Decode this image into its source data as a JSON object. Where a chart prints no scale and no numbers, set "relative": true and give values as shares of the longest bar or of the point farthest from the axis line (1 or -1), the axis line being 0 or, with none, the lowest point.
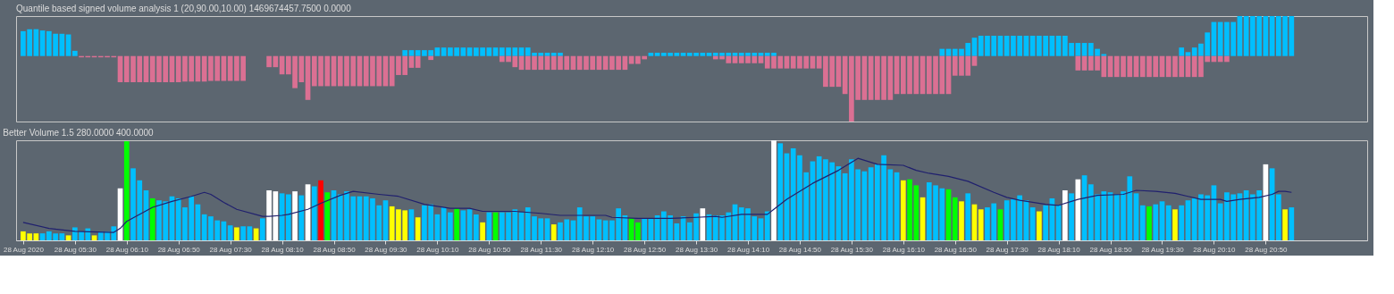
{
  "chart_data": [
    {
      "type": "bar",
      "title": "Quantile based signed volume analysis 1 (20,90.00,10.00) 1469674457.7500 0.0000",
      "relative": true,
      "tick_labels": false,
      "xlim": [
        "2020-08-28T04:48",
        "2020-08-28T22:05"
      ],
      "x": [
        "2020-08-28T04:50",
        "2020-08-28T04:55",
        "2020-08-28T05:00",
        "2020-08-28T05:05",
        "2020-08-28T05:10",
        "2020-08-28T05:15",
        "2020-08-28T05:20",
        "2020-08-28T05:25",
        "2020-08-28T05:30",
        "2020-08-28T05:35",
        "2020-08-28T05:40",
        "2020-08-28T05:45",
        "2020-08-28T05:50",
        "2020-08-28T05:55",
        "2020-08-28T06:00",
        "2020-08-28T06:05",
        "2020-08-28T06:10",
        "2020-08-28T06:15",
        "2020-08-28T06:20",
        "2020-08-28T06:25",
        "2020-08-28T06:30",
        "2020-08-28T06:35",
        "2020-08-28T06:40",
        "2020-08-28T06:45",
        "2020-08-28T06:50",
        "2020-08-28T06:55",
        "2020-08-28T07:00",
        "2020-08-28T07:05",
        "2020-08-28T07:10",
        "2020-08-28T07:15",
        "2020-08-28T07:20",
        "2020-08-28T07:25",
        "2020-08-28T07:30",
        "2020-08-28T07:35",
        "2020-08-28T07:40",
        "2020-08-28T07:45",
        "2020-08-28T07:50",
        "2020-08-28T07:55",
        "2020-08-28T08:00",
        "2020-08-28T08:05",
        "2020-08-28T08:10",
        "2020-08-28T08:15",
        "2020-08-28T08:20",
        "2020-08-28T08:25",
        "2020-08-28T08:30",
        "2020-08-28T08:35",
        "2020-08-28T08:40",
        "2020-08-28T08:45",
        "2020-08-28T08:50",
        "2020-08-28T08:55",
        "2020-08-28T09:00",
        "2020-08-28T09:05",
        "2020-08-28T09:10",
        "2020-08-28T09:15",
        "2020-08-28T09:20",
        "2020-08-28T09:25",
        "2020-08-28T09:30",
        "2020-08-28T09:35",
        "2020-08-28T09:40",
        "2020-08-28T09:45",
        "2020-08-28T09:50",
        "2020-08-28T09:55",
        "2020-08-28T10:00",
        "2020-08-28T10:05",
        "2020-08-28T10:10",
        "2020-08-28T10:15",
        "2020-08-28T10:20",
        "2020-08-28T10:25",
        "2020-08-28T10:30",
        "2020-08-28T10:35",
        "2020-08-28T10:40",
        "2020-08-28T10:45",
        "2020-08-28T10:50",
        "2020-08-28T10:55",
        "2020-08-28T11:00",
        "2020-08-28T11:05",
        "2020-08-28T11:10",
        "2020-08-28T11:15",
        "2020-08-28T11:20",
        "2020-08-28T11:25",
        "2020-08-28T11:30",
        "2020-08-28T11:35",
        "2020-08-28T11:40",
        "2020-08-28T11:45",
        "2020-08-28T11:50",
        "2020-08-28T11:55",
        "2020-08-28T12:00",
        "2020-08-28T12:05",
        "2020-08-28T12:10",
        "2020-08-28T12:15",
        "2020-08-28T12:20",
        "2020-08-28T12:25",
        "2020-08-28T12:30",
        "2020-08-28T12:35",
        "2020-08-28T12:40",
        "2020-08-28T12:45",
        "2020-08-28T12:50",
        "2020-08-28T12:55",
        "2020-08-28T13:00",
        "2020-08-28T13:05",
        "2020-08-28T13:10",
        "2020-08-28T13:15",
        "2020-08-28T13:20",
        "2020-08-28T13:25",
        "2020-08-28T13:30",
        "2020-08-28T13:35",
        "2020-08-28T13:40",
        "2020-08-28T13:45",
        "2020-08-28T13:50",
        "2020-08-28T13:55",
        "2020-08-28T14:00",
        "2020-08-28T14:05",
        "2020-08-28T14:10",
        "2020-08-28T14:15",
        "2020-08-28T14:20",
        "2020-08-28T14:25",
        "2020-08-28T14:30",
        "2020-08-28T14:35",
        "2020-08-28T14:40",
        "2020-08-28T14:45",
        "2020-08-28T14:50",
        "2020-08-28T14:55",
        "2020-08-28T15:00",
        "2020-08-28T15:05",
        "2020-08-28T15:10",
        "2020-08-28T15:15",
        "2020-08-28T15:20",
        "2020-08-28T15:25",
        "2020-08-28T15:30",
        "2020-08-28T15:35",
        "2020-08-28T15:40",
        "2020-08-28T15:45",
        "2020-08-28T15:50",
        "2020-08-28T15:55",
        "2020-08-28T16:00",
        "2020-08-28T16:05",
        "2020-08-28T16:10",
        "2020-08-28T16:15",
        "2020-08-28T16:20",
        "2020-08-28T16:25",
        "2020-08-28T16:30",
        "2020-08-28T16:35",
        "2020-08-28T16:40",
        "2020-08-28T16:45",
        "2020-08-28T16:50",
        "2020-08-28T16:55",
        "2020-08-28T17:00",
        "2020-08-28T17:05",
        "2020-08-28T17:10",
        "2020-08-28T17:15",
        "2020-08-28T17:20",
        "2020-08-28T17:25",
        "2020-08-28T17:30",
        "2020-08-28T17:35",
        "2020-08-28T17:40",
        "2020-08-28T17:45",
        "2020-08-28T17:50",
        "2020-08-28T17:55",
        "2020-08-28T18:00",
        "2020-08-28T18:05",
        "2020-08-28T18:10",
        "2020-08-28T18:15",
        "2020-08-28T18:20",
        "2020-08-28T18:25",
        "2020-08-28T18:30",
        "2020-08-28T18:35",
        "2020-08-28T18:40",
        "2020-08-28T18:45",
        "2020-08-28T18:50",
        "2020-08-28T18:55",
        "2020-08-28T19:00",
        "2020-08-28T19:05",
        "2020-08-28T19:10",
        "2020-08-28T19:15",
        "2020-08-28T19:20",
        "2020-08-28T19:25",
        "2020-08-28T19:30",
        "2020-08-28T19:35",
        "2020-08-28T19:40",
        "2020-08-28T19:45",
        "2020-08-28T19:50",
        "2020-08-28T19:55",
        "2020-08-28T20:00",
        "2020-08-28T20:05",
        "2020-08-28T20:10",
        "2020-08-28T20:15",
        "2020-08-28T20:20",
        "2020-08-28T20:25",
        "2020-08-28T20:30",
        "2020-08-28T20:35",
        "2020-08-28T20:40",
        "2020-08-28T20:45",
        "2020-08-28T20:50",
        "2020-08-28T20:55",
        "2020-08-28T21:00",
        "2020-08-28T21:05",
        "2020-08-28T21:10"
      ],
      "series": [
        {
          "color": "#00bfff",
          "values": [
            0.38,
            0.41,
            0.41,
            0.39,
            0.38,
            0.34,
            0.34,
            0.33,
            0.08,
            null,
            null,
            null,
            null,
            null,
            null,
            null,
            null,
            null,
            null,
            null,
            null,
            null,
            null,
            null,
            null,
            null,
            null,
            null,
            null,
            null,
            null,
            null,
            null,
            null,
            null,
            null,
            null,
            null,
            null,
            null,
            null,
            null,
            null,
            null,
            null,
            null,
            null,
            null,
            null,
            null,
            null,
            null,
            null,
            null,
            null,
            null,
            null,
            null,
            null,
            0.09,
            0.09,
            0.09,
            0.09,
            0.09,
            0.13,
            0.13,
            0.13,
            0.13,
            0.13,
            0.13,
            0.13,
            0.13,
            0.13,
            0.13,
            0.13,
            0.13,
            0.13,
            0.13,
            0.13,
            0.05,
            0.05,
            0.05,
            0.05,
            0.05,
            null,
            null,
            null,
            null,
            null,
            null,
            null,
            null,
            null,
            null,
            null,
            null,
            null,
            0.05,
            0.05,
            0.05,
            0.05,
            0.05,
            0.05,
            0.05,
            0.05,
            0.05,
            0.05,
            0.05,
            0.05,
            0.05,
            0.05,
            0.05,
            0.05,
            0.05,
            0.05,
            0.05,
            0.05,
            null,
            null,
            null,
            null,
            null,
            null,
            null,
            null,
            null,
            null,
            null,
            null,
            null,
            null,
            null,
            null,
            null,
            null,
            null,
            null,
            null,
            null,
            null,
            null,
            null,
            0.11,
            0.11,
            0.11,
            0.11,
            0.2,
            0.28,
            0.31,
            0.31,
            0.31,
            0.31,
            0.31,
            0.31,
            0.31,
            0.31,
            0.31,
            0.31,
            0.31,
            0.31,
            0.31,
            0.31,
            0.2,
            0.2,
            0.2,
            0.2,
            0.11,
            0.03,
            null,
            null,
            null,
            null,
            null,
            null,
            null,
            null,
            null,
            null,
            null,
            0.13,
            0.06,
            0.13,
            0.19,
            0.36,
            0.52,
            0.52,
            0.52,
            0.52,
            0.61,
            0.61,
            0.61,
            0.61,
            0.61,
            0.61,
            0.61,
            0.61,
            0.61
          ]
        },
        {
          "color": "#db7093",
          "values": [
            null,
            null,
            null,
            null,
            null,
            null,
            null,
            null,
            null,
            -0.02,
            -0.02,
            -0.02,
            -0.02,
            -0.02,
            -0.02,
            -0.4,
            -0.4,
            -0.4,
            -0.4,
            -0.4,
            -0.4,
            -0.4,
            -0.4,
            -0.4,
            -0.4,
            -0.39,
            -0.39,
            -0.39,
            -0.39,
            -0.38,
            -0.38,
            -0.38,
            -0.38,
            -0.38,
            -0.38,
            null,
            null,
            null,
            -0.17,
            -0.17,
            -0.28,
            -0.28,
            -0.49,
            -0.4,
            -0.67,
            -0.46,
            -0.46,
            -0.46,
            -0.46,
            -0.46,
            -0.46,
            -0.46,
            -0.46,
            -0.46,
            -0.46,
            -0.46,
            -0.46,
            -0.46,
            -0.29,
            -0.29,
            -0.18,
            -0.18,
            null,
            -0.06,
            null,
            null,
            null,
            null,
            null,
            null,
            null,
            null,
            null,
            null,
            -0.09,
            -0.09,
            -0.17,
            -0.21,
            -0.21,
            -0.21,
            -0.21,
            -0.21,
            -0.21,
            -0.21,
            -0.21,
            -0.21,
            -0.21,
            -0.21,
            -0.21,
            -0.21,
            -0.21,
            -0.21,
            -0.21,
            -0.21,
            -0.12,
            -0.12,
            -0.05,
            null,
            null,
            null,
            null,
            null,
            null,
            null,
            null,
            null,
            null,
            -0.05,
            -0.05,
            -0.11,
            -0.11,
            -0.11,
            -0.11,
            -0.11,
            -0.11,
            -0.19,
            -0.19,
            -0.19,
            -0.19,
            -0.19,
            -0.19,
            -0.19,
            -0.19,
            -0.19,
            -0.47,
            -0.47,
            -0.47,
            -0.58,
            -1,
            -0.67,
            -0.67,
            -0.67,
            -0.67,
            -0.67,
            -0.67,
            -0.58,
            -0.58,
            -0.58,
            -0.58,
            -0.58,
            -0.58,
            -0.58,
            -0.58,
            -0.58,
            -0.3,
            -0.3,
            -0.3,
            -0.15,
            null,
            null,
            null,
            null,
            null,
            null,
            null,
            null,
            null,
            null,
            null,
            null,
            null,
            null,
            null,
            -0.22,
            -0.22,
            -0.22,
            -0.22,
            -0.32,
            -0.32,
            -0.32,
            -0.32,
            -0.32,
            -0.32,
            -0.32,
            -0.32,
            -0.32,
            -0.32,
            -0.32,
            -0.32,
            -0.32,
            -0.32,
            -0.32,
            -0.32,
            -0.09,
            -0.09,
            -0.09,
            -0.09,
            null,
            null,
            null,
            null,
            null,
            null,
            null,
            null,
            null,
            null
          ]
        }
      ]
    },
    {
      "type": "bar",
      "title": "Better Volume 1.5 280.0000 400.0000",
      "relative": true,
      "xlim": [
        "2020-08-28T04:48",
        "2020-08-28T22:05"
      ],
      "xticks": [
        {
          "value": "2020-08-28T04:50",
          "label": "28 Aug 2020"
        },
        {
          "value": "2020-08-28T05:30",
          "label": "28 Aug 05:30"
        },
        {
          "value": "2020-08-28T06:10",
          "label": "28 Aug 06:10"
        },
        {
          "value": "2020-08-28T06:50",
          "label": "28 Aug 06:50"
        },
        {
          "value": "2020-08-28T07:30",
          "label": "28 Aug 07:30"
        },
        {
          "value": "2020-08-28T08:10",
          "label": "28 Aug 08:10"
        },
        {
          "value": "2020-08-28T08:50",
          "label": "28 Aug 08:50"
        },
        {
          "value": "2020-08-28T09:30",
          "label": "28 Aug 09:30"
        },
        {
          "value": "2020-08-28T10:10",
          "label": "28 Aug 10:10"
        },
        {
          "value": "2020-08-28T10:50",
          "label": "28 Aug 10:50"
        },
        {
          "value": "2020-08-28T11:30",
          "label": "28 Aug 11:30"
        },
        {
          "value": "2020-08-28T12:10",
          "label": "28 Aug 12:10"
        },
        {
          "value": "2020-08-28T12:50",
          "label": "28 Aug 12:50"
        },
        {
          "value": "2020-08-28T13:30",
          "label": "28 Aug 13:30"
        },
        {
          "value": "2020-08-28T14:10",
          "label": "28 Aug 14:10"
        },
        {
          "value": "2020-08-28T14:50",
          "label": "28 Aug 14:50"
        },
        {
          "value": "2020-08-28T15:30",
          "label": "28 Aug 15:30"
        },
        {
          "value": "2020-08-28T16:10",
          "label": "28 Aug 16:10"
        },
        {
          "value": "2020-08-28T16:50",
          "label": "28 Aug 16:50"
        },
        {
          "value": "2020-08-28T17:30",
          "label": "28 Aug 17:30"
        },
        {
          "value": "2020-08-28T18:10",
          "label": "28 Aug 18:10"
        },
        {
          "value": "2020-08-28T18:50",
          "label": "28 Aug 18:50"
        },
        {
          "value": "2020-08-28T19:30",
          "label": "28 Aug 19:30"
        },
        {
          "value": "2020-08-28T20:10",
          "label": "28 Aug 20:10"
        },
        {
          "value": "2020-08-28T20:50",
          "label": "28 Aug 20:50"
        }
      ],
      "x": [
        "2020-08-28T04:50",
        "2020-08-28T04:55",
        "2020-08-28T05:00",
        "2020-08-28T05:05",
        "2020-08-28T05:10",
        "2020-08-28T05:15",
        "2020-08-28T05:20",
        "2020-08-28T05:25",
        "2020-08-28T05:30",
        "2020-08-28T05:35",
        "2020-08-28T05:40",
        "2020-08-28T05:45",
        "2020-08-28T05:50",
        "2020-08-28T05:55",
        "2020-08-28T06:00",
        "2020-08-28T06:05",
        "2020-08-28T06:10",
        "2020-08-28T06:15",
        "2020-08-28T06:20",
        "2020-08-28T06:25",
        "2020-08-28T06:30",
        "2020-08-28T06:35",
        "2020-08-28T06:40",
        "2020-08-28T06:45",
        "2020-08-28T06:50",
        "2020-08-28T06:55",
        "2020-08-28T07:00",
        "2020-08-28T07:05",
        "2020-08-28T07:10",
        "2020-08-28T07:15",
        "2020-08-28T07:20",
        "2020-08-28T07:25",
        "2020-08-28T07:30",
        "2020-08-28T07:35",
        "2020-08-28T07:40",
        "2020-08-28T07:45",
        "2020-08-28T07:50",
        "2020-08-28T07:55",
        "2020-08-28T08:00",
        "2020-08-28T08:05",
        "2020-08-28T08:10",
        "2020-08-28T08:15",
        "2020-08-28T08:20",
        "2020-08-28T08:25",
        "2020-08-28T08:30",
        "2020-08-28T08:35",
        "2020-08-28T08:40",
        "2020-08-28T08:45",
        "2020-08-28T08:50",
        "2020-08-28T08:55",
        "2020-08-28T09:00",
        "2020-08-28T09:05",
        "2020-08-28T09:10",
        "2020-08-28T09:15",
        "2020-08-28T09:20",
        "2020-08-28T09:25",
        "2020-08-28T09:30",
        "2020-08-28T09:35",
        "2020-08-28T09:40",
        "2020-08-28T09:45",
        "2020-08-28T09:50",
        "2020-08-28T09:55",
        "2020-08-28T10:00",
        "2020-08-28T10:05",
        "2020-08-28T10:10",
        "2020-08-28T10:15",
        "2020-08-28T10:20",
        "2020-08-28T10:25",
        "2020-08-28T10:30",
        "2020-08-28T10:35",
        "2020-08-28T10:40",
        "2020-08-28T10:45",
        "2020-08-28T10:50",
        "2020-08-28T10:55",
        "2020-08-28T11:00",
        "2020-08-28T11:05",
        "2020-08-28T11:10",
        "2020-08-28T11:15",
        "2020-08-28T11:20",
        "2020-08-28T11:25",
        "2020-08-28T11:30",
        "2020-08-28T11:35",
        "2020-08-28T11:40",
        "2020-08-28T11:45",
        "2020-08-28T11:50",
        "2020-08-28T11:55",
        "2020-08-28T12:00",
        "2020-08-28T12:05",
        "2020-08-28T12:10",
        "2020-08-28T12:15",
        "2020-08-28T12:20",
        "2020-08-28T12:25",
        "2020-08-28T12:30",
        "2020-08-28T12:35",
        "2020-08-28T12:40",
        "2020-08-28T12:45",
        "2020-08-28T12:50",
        "2020-08-28T12:55",
        "2020-08-28T13:00",
        "2020-08-28T13:05",
        "2020-08-28T13:10",
        "2020-08-28T13:15",
        "2020-08-28T13:20",
        "2020-08-28T13:25",
        "2020-08-28T13:30",
        "2020-08-28T13:35",
        "2020-08-28T13:40",
        "2020-08-28T13:45",
        "2020-08-28T13:50",
        "2020-08-28T13:55",
        "2020-08-28T14:00",
        "2020-08-28T14:05",
        "2020-08-28T14:10",
        "2020-08-28T14:15",
        "2020-08-28T14:20",
        "2020-08-28T14:25",
        "2020-08-28T14:30",
        "2020-08-28T14:35",
        "2020-08-28T14:40",
        "2020-08-28T14:45",
        "2020-08-28T14:50",
        "2020-08-28T14:55",
        "2020-08-28T15:00",
        "2020-08-28T15:05",
        "2020-08-28T15:10",
        "2020-08-28T15:15",
        "2020-08-28T15:20",
        "2020-08-28T15:25",
        "2020-08-28T15:30",
        "2020-08-28T15:35",
        "2020-08-28T15:40",
        "2020-08-28T15:45",
        "2020-08-28T15:50",
        "2020-08-28T15:55",
        "2020-08-28T16:00",
        "2020-08-28T16:05",
        "2020-08-28T16:10",
        "2020-08-28T16:15",
        "2020-08-28T16:20",
        "2020-08-28T16:25",
        "2020-08-28T16:30",
        "2020-08-28T16:35",
        "2020-08-28T16:40",
        "2020-08-28T16:45",
        "2020-08-28T16:50",
        "2020-08-28T16:55",
        "2020-08-28T17:00",
        "2020-08-28T17:05",
        "2020-08-28T17:10",
        "2020-08-28T17:15",
        "2020-08-28T17:20",
        "2020-08-28T17:25",
        "2020-08-28T17:30",
        "2020-08-28T17:35",
        "2020-08-28T17:40",
        "2020-08-28T17:45",
        "2020-08-28T17:50",
        "2020-08-28T17:55",
        "2020-08-28T18:00",
        "2020-08-28T18:05",
        "2020-08-28T18:10",
        "2020-08-28T18:15",
        "2020-08-28T18:20",
        "2020-08-28T18:25",
        "2020-08-28T18:30",
        "2020-08-28T18:35",
        "2020-08-28T18:40",
        "2020-08-28T18:45",
        "2020-08-28T18:50",
        "2020-08-28T18:55",
        "2020-08-28T19:00",
        "2020-08-28T19:05",
        "2020-08-28T19:10",
        "2020-08-28T19:15",
        "2020-08-28T19:20",
        "2020-08-28T19:25",
        "2020-08-28T19:30",
        "2020-08-28T19:35",
        "2020-08-28T19:40",
        "2020-08-28T19:45",
        "2020-08-28T19:50",
        "2020-08-28T19:55",
        "2020-08-28T20:00",
        "2020-08-28T20:05",
        "2020-08-28T20:10",
        "2020-08-28T20:15",
        "2020-08-28T20:20",
        "2020-08-28T20:25",
        "2020-08-28T20:30",
        "2020-08-28T20:35",
        "2020-08-28T20:40",
        "2020-08-28T20:45",
        "2020-08-28T20:50",
        "2020-08-28T20:55",
        "2020-08-28T21:00",
        "2020-08-28T21:05",
        "2020-08-28T21:10"
      ],
      "series": [
        {
          "values": [
            0.09,
            0.07,
            0.07,
            0.07,
            0.09,
            0.07,
            0.07,
            0.05,
            0.13,
            0.09,
            0.12,
            0.05,
            0.09,
            0.09,
            0.14,
            0.52,
            0.99,
            0.72,
            0.6,
            0.5,
            0.42,
            0.4,
            0.39,
            0.44,
            0.42,
            0.33,
            0.44,
            0.36,
            0.26,
            0.24,
            0.2,
            0.19,
            0.15,
            0.13,
            0.14,
            0.14,
            0.12,
            0.22,
            0.5,
            0.49,
            0.47,
            0.46,
            0.49,
            0.45,
            0.56,
            0.54,
            0.6,
            0.48,
            0.5,
            0.46,
            0.49,
            0.44,
            0.44,
            0.44,
            0.42,
            0.35,
            0.4,
            0.34,
            0.31,
            0.3,
            0.31,
            0.23,
            0.35,
            0.36,
            0.26,
            0.33,
            0.28,
            0.32,
            0.3,
            0.31,
            0.26,
            0.18,
            0.28,
            0.28,
            0.28,
            0.28,
            0.31,
            0.28,
            0.33,
            0.24,
            0.22,
            0.22,
            0.16,
            0.18,
            0.21,
            0.2,
            0.33,
            0.24,
            0.24,
            0.21,
            0.2,
            0.2,
            0.32,
            0.25,
            0.22,
            0.18,
            0.22,
            0.22,
            0.25,
            0.29,
            0.25,
            0.17,
            0.24,
            0.18,
            0.27,
            0.32,
            0.26,
            0.25,
            0.25,
            0.28,
            0.36,
            0.33,
            0.32,
            0.24,
            0.22,
            0.29,
            1,
            0.97,
            0.87,
            0.92,
            0.85,
            0.68,
            0.79,
            0.84,
            0.81,
            0.78,
            0.74,
            0.67,
            0.81,
            0.71,
            0.69,
            0.73,
            0.76,
            0.85,
            0.71,
            0.68,
            0.6,
            0.61,
            0.55,
            0.43,
            0.58,
            0.55,
            0.52,
            0.51,
            0.43,
            0.39,
            0.47,
            0.36,
            0.31,
            0.33,
            0.37,
            0.31,
            0.4,
            0.41,
            0.45,
            0.4,
            0.33,
            0.29,
            0.35,
            0.42,
            0.35,
            0.5,
            0.47,
            0.61,
            0.65,
            0.56,
            0.46,
            0.49,
            0.48,
            0.46,
            0.49,
            0.64,
            0.47,
            0.35,
            0.34,
            0.36,
            0.39,
            0.35,
            0.31,
            0.35,
            0.4,
            0.42,
            0.46,
            0.45,
            0.55,
            0.37,
            0.48,
            0.46,
            0.47,
            0.5,
            0.46,
            0.5,
            0.76,
            0.72,
            0.46,
            0.31,
            0.33
          ],
          "colors": [
            "#ffff00",
            "#ffff00",
            "#ffff00",
            "#00bfff",
            "#00bfff",
            "#00bfff",
            "#00bfff",
            "#ffff00",
            "#00bfff",
            "#00bfff",
            "#00bfff",
            "#ffff00",
            "#00bfff",
            "#00bfff",
            "#00bfff",
            "#ffffff",
            "#00ff00",
            "#00bfff",
            "#00bfff",
            "#00bfff",
            "#00ff00",
            "#00bfff",
            "#00bfff",
            "#00bfff",
            "#00bfff",
            "#00bfff",
            "#00bfff",
            "#00bfff",
            "#00bfff",
            "#00bfff",
            "#00bfff",
            "#00bfff",
            "#00bfff",
            "#ffff00",
            "#00bfff",
            "#00bfff",
            "#ffff00",
            "#00bfff",
            "#ffffff",
            "#ffffff",
            "#00bfff",
            "#00bfff",
            "#ffffff",
            "#00bfff",
            "#ffffff",
            "#00bfff",
            "#ff0000",
            "#00ff00",
            "#00bfff",
            "#00bfff",
            "#00bfff",
            "#00bfff",
            "#00bfff",
            "#00bfff",
            "#00bfff",
            "#00bfff",
            "#00bfff",
            "#ffff00",
            "#ffff00",
            "#ffff00",
            "#00bfff",
            "#ffff00",
            "#00bfff",
            "#00bfff",
            "#00bfff",
            "#00bfff",
            "#00bfff",
            "#00ff00",
            "#00bfff",
            "#00bfff",
            "#00bfff",
            "#ffff00",
            "#00bfff",
            "#00ff00",
            "#00bfff",
            "#00bfff",
            "#00bfff",
            "#00bfff",
            "#00bfff",
            "#00bfff",
            "#00bfff",
            "#00bfff",
            "#ffff00",
            "#00bfff",
            "#00bfff",
            "#00bfff",
            "#00bfff",
            "#00bfff",
            "#00bfff",
            "#00bfff",
            "#00bfff",
            "#00bfff",
            "#00bfff",
            "#00bfff",
            "#00ff00",
            "#00ff00",
            "#00bfff",
            "#00bfff",
            "#00bfff",
            "#00bfff",
            "#00bfff",
            "#00bfff",
            "#00bfff",
            "#00bfff",
            "#00bfff",
            "#ffffff",
            "#00bfff",
            "#00bfff",
            "#00bfff",
            "#00bfff",
            "#00bfff",
            "#00bfff",
            "#00bfff",
            "#00bfff",
            "#00bfff",
            "#00bfff",
            "#ffffff",
            "#00bfff",
            "#00bfff",
            "#00bfff",
            "#00bfff",
            "#00bfff",
            "#00bfff",
            "#00bfff",
            "#00bfff",
            "#00bfff",
            "#00bfff",
            "#00bfff",
            "#00bfff",
            "#00bfff",
            "#00bfff",
            "#00bfff",
            "#00bfff",
            "#00bfff",
            "#00bfff",
            "#00bfff",
            "#ffff00",
            "#00ff00",
            "#00ff00",
            "#ffff00",
            "#00bfff",
            "#00bfff",
            "#00bfff",
            "#00ff00",
            "#00ff00",
            "#ffff00",
            "#00bfff",
            "#ffff00",
            "#ffff00",
            "#00bfff",
            "#00bfff",
            "#00ff00",
            "#00bfff",
            "#00bfff",
            "#00bfff",
            "#00bfff",
            "#00bfff",
            "#ffff00",
            "#00bfff",
            "#00bfff",
            "#00bfff",
            "#ffffff",
            "#00bfff",
            "#ffffff",
            "#00bfff",
            "#00bfff",
            "#00bfff",
            "#00bfff",
            "#00bfff",
            "#00bfff",
            "#00bfff",
            "#00bfff",
            "#00bfff",
            "#00bfff",
            "#00ff00",
            "#00bfff",
            "#00bfff",
            "#00bfff",
            "#ffff00",
            "#00bfff",
            "#00bfff",
            "#00bfff",
            "#00bfff",
            "#00bfff",
            "#00bfff",
            "#00bfff",
            "#00bfff",
            "#00bfff",
            "#00bfff",
            "#00bfff",
            "#00bfff",
            "#00bfff",
            "#ffffff",
            "#00bfff",
            "#00bfff",
            "#ffff00",
            "#00bfff"
          ]
        },
        {
          "type": "line",
          "color": "#20206e",
          "x": [
            "2020-08-28T04:50",
            "2020-08-28T05:10",
            "2020-08-28T05:30",
            "2020-08-28T06:00",
            "2020-08-28T06:05",
            "2020-08-28T06:10",
            "2020-08-28T06:30",
            "2020-08-28T06:45",
            "2020-08-28T07:00",
            "2020-08-28T07:10",
            "2020-08-28T07:15",
            "2020-08-28T07:25",
            "2020-08-28T07:35",
            "2020-08-28T07:55",
            "2020-08-28T08:00",
            "2020-08-28T08:10",
            "2020-08-28T08:15",
            "2020-08-28T08:30",
            "2020-08-28T08:40",
            "2020-08-28T08:55",
            "2020-08-28T09:05",
            "2020-08-28T09:25",
            "2020-08-28T09:40",
            "2020-08-28T10:00",
            "2020-08-28T10:20",
            "2020-08-28T10:35",
            "2020-08-28T10:45",
            "2020-08-28T11:10",
            "2020-08-28T11:30",
            "2020-08-28T11:45",
            "2020-08-28T12:20",
            "2020-08-28T12:25",
            "2020-08-28T12:45",
            "2020-08-28T13:10",
            "2020-08-28T13:30",
            "2020-08-28T13:45",
            "2020-08-28T13:50",
            "2020-08-28T14:05",
            "2020-08-28T14:25",
            "2020-08-28T14:30",
            "2020-08-28T14:40",
            "2020-08-28T15:00",
            "2020-08-28T15:20",
            "2020-08-28T15:35",
            "2020-08-28T15:50",
            "2020-08-28T16:10",
            "2020-08-28T16:20",
            "2020-08-28T16:30",
            "2020-08-28T16:45",
            "2020-08-28T17:00",
            "2020-08-28T17:20",
            "2020-08-28T17:30",
            "2020-08-28T17:40",
            "2020-08-28T18:00",
            "2020-08-28T18:10",
            "2020-08-28T18:25",
            "2020-08-28T18:40",
            "2020-08-28T19:00",
            "2020-08-28T19:10",
            "2020-08-28T19:25",
            "2020-08-28T19:40",
            "2020-08-28T19:50",
            "2020-08-28T20:00",
            "2020-08-28T20:15",
            "2020-08-28T20:20",
            "2020-08-28T20:30",
            "2020-08-28T20:45",
            "2020-08-28T20:55",
            "2020-08-28T21:00",
            "2020-08-28T21:05",
            "2020-08-28T21:10"
          ],
          "values": [
            0.18,
            0.12,
            0.09,
            0.08,
            0.12,
            0.19,
            0.33,
            0.39,
            0.44,
            0.48,
            0.46,
            0.38,
            0.31,
            0.24,
            0.24,
            0.25,
            0.26,
            0.31,
            0.37,
            0.45,
            0.49,
            0.46,
            0.44,
            0.36,
            0.32,
            0.32,
            0.29,
            0.29,
            0.27,
            0.25,
            0.25,
            0.23,
            0.22,
            0.22,
            0.23,
            0.24,
            0.23,
            0.26,
            0.26,
            0.31,
            0.41,
            0.57,
            0.7,
            0.82,
            0.76,
            0.75,
            0.7,
            0.67,
            0.64,
            0.59,
            0.48,
            0.43,
            0.4,
            0.36,
            0.35,
            0.41,
            0.45,
            0.46,
            0.5,
            0.49,
            0.47,
            0.44,
            0.41,
            0.41,
            0.39,
            0.41,
            0.43,
            0.46,
            0.49,
            0.49,
            0.48
          ]
        }
      ]
    }
  ]
}
